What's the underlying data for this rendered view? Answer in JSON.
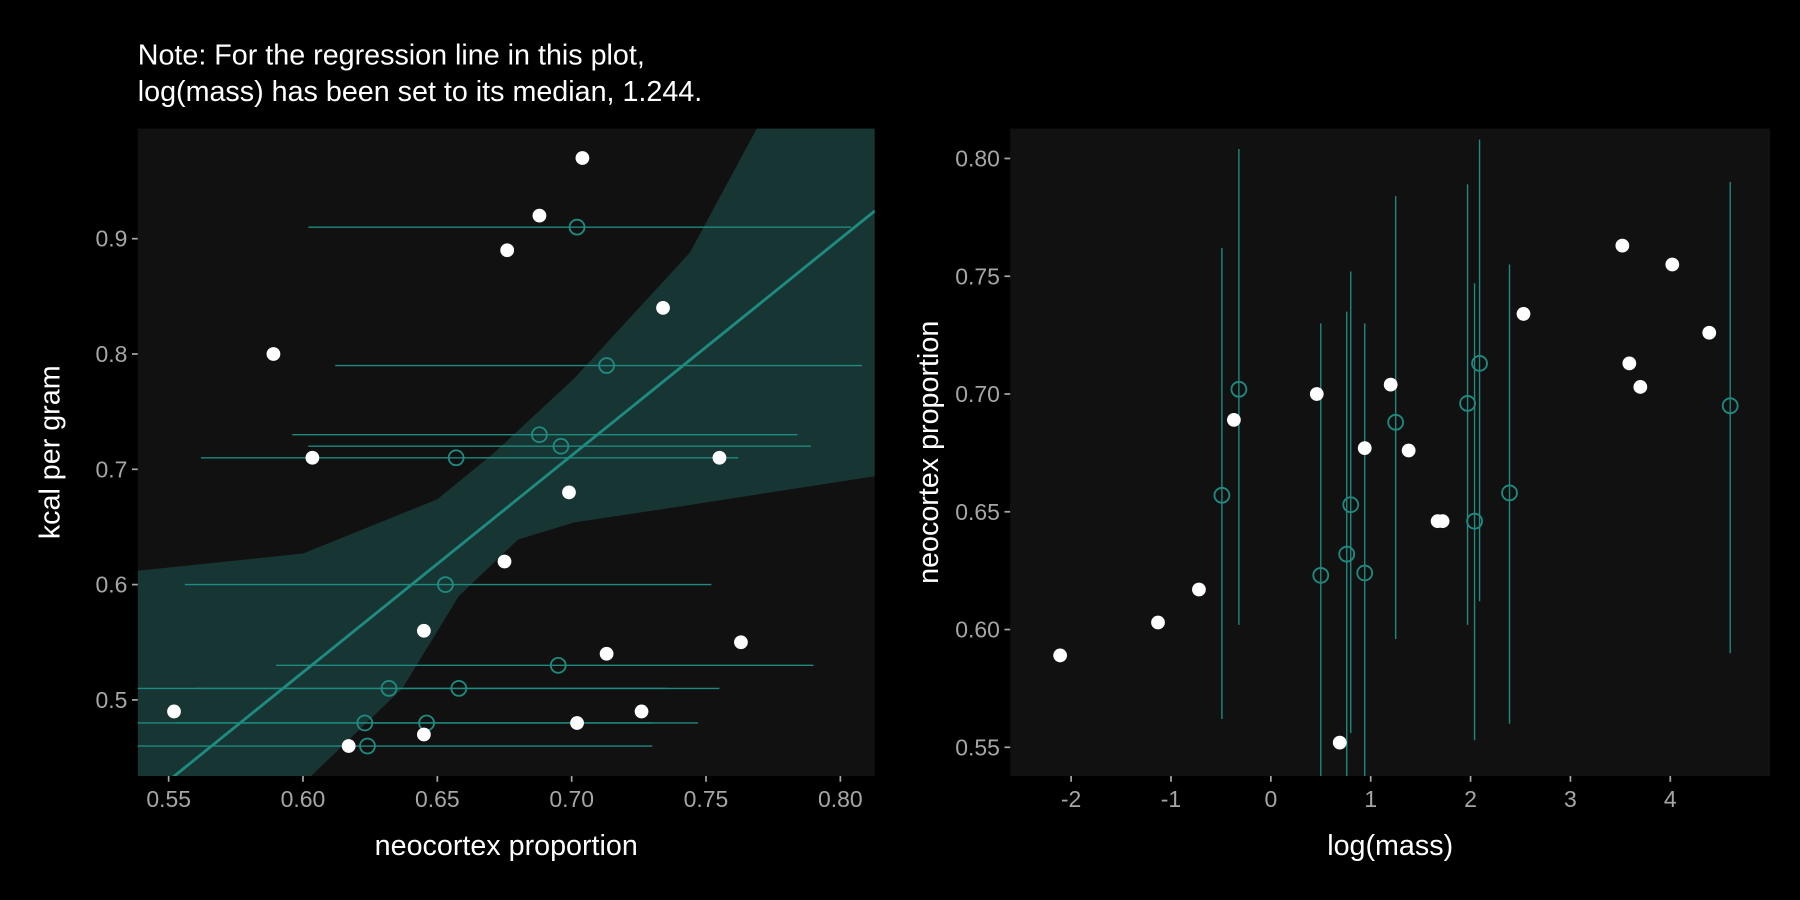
{
  "colors": {
    "background": "#000000",
    "panel": "#111111",
    "accent": "#1f8a80",
    "ribbon": "#173532",
    "observed": "#ffffff",
    "tick": "#a6a6a6"
  },
  "chart_data": [
    {
      "type": "scatter",
      "title": "Note: For the regression line in this plot,",
      "subtitle": "log(mass) has been set to its median, 1.244.",
      "xlabel": "neocortex proportion",
      "ylabel": "kcal per gram",
      "xlim": [
        0.5385,
        0.8128
      ],
      "ylim": [
        0.434,
        0.9955
      ],
      "xticks": [
        0.55,
        0.6,
        0.65,
        0.7,
        0.75,
        0.8
      ],
      "xtick_labels": [
        "0.55",
        "0.60",
        "0.65",
        "0.70",
        "0.75",
        "0.80"
      ],
      "yticks": [
        0.5,
        0.6,
        0.7,
        0.8,
        0.9
      ],
      "ytick_labels": [
        "0.5",
        "0.6",
        "0.7",
        "0.8",
        "0.9"
      ],
      "grid": false,
      "observed": [
        [
          0.552,
          0.49
        ],
        [
          0.589,
          0.8
        ],
        [
          0.6035,
          0.71
        ],
        [
          0.617,
          0.46
        ],
        [
          0.645,
          0.56
        ],
        [
          0.645,
          0.47
        ],
        [
          0.675,
          0.62
        ],
        [
          0.676,
          0.89
        ],
        [
          0.688,
          0.92
        ],
        [
          0.699,
          0.68
        ],
        [
          0.702,
          0.48
        ],
        [
          0.704,
          0.97
        ],
        [
          0.713,
          0.54
        ],
        [
          0.726,
          0.49
        ],
        [
          0.734,
          0.84
        ],
        [
          0.755,
          0.71
        ],
        [
          0.763,
          0.55
        ]
      ],
      "regression_line": {
        "intercept_at_0.6": 0.524,
        "slope": 1.88
      },
      "ribbon_upper": [
        [
          0.5385,
          0.612
        ],
        [
          0.6,
          0.627
        ],
        [
          0.65,
          0.674
        ],
        [
          0.671,
          0.714
        ],
        [
          0.701,
          0.779
        ],
        [
          0.744,
          0.888
        ],
        [
          0.769,
          0.996
        ]
      ],
      "ribbon_lower": [
        [
          0.5385,
          0.33
        ],
        [
          0.603,
          0.434
        ],
        [
          0.637,
          0.51
        ],
        [
          0.658,
          0.59
        ],
        [
          0.68,
          0.639
        ],
        [
          0.701,
          0.654
        ],
        [
          0.744,
          0.669
        ],
        [
          0.8128,
          0.694
        ]
      ]
    },
    {
      "type": "scatter",
      "xlabel": "log(mass)",
      "ylabel": "neocortex proportion",
      "xlim": [
        -2.61,
        5.0
      ],
      "ylim": [
        0.5378,
        0.8127
      ],
      "xticks": [
        -2,
        -1,
        0,
        1,
        2,
        3,
        4
      ],
      "xtick_labels": [
        "-2",
        "-1",
        "0",
        "1",
        "2",
        "3",
        "4"
      ],
      "yticks": [
        0.55,
        0.6,
        0.65,
        0.7,
        0.75,
        0.8
      ],
      "ytick_labels": [
        "0.55",
        "0.60",
        "0.65",
        "0.70",
        "0.75",
        "0.80"
      ],
      "grid": false,
      "observed": [
        [
          -2.11,
          0.589
        ],
        [
          -1.13,
          0.603
        ],
        [
          -0.72,
          0.617
        ],
        [
          -0.37,
          0.689
        ],
        [
          0.46,
          0.7
        ],
        [
          0.69,
          0.552
        ],
        [
          0.94,
          0.677
        ],
        [
          1.2,
          0.704
        ],
        [
          1.38,
          0.676
        ],
        [
          1.67,
          0.646
        ],
        [
          1.72,
          0.646
        ],
        [
          2.53,
          0.734
        ],
        [
          3.52,
          0.763
        ],
        [
          3.59,
          0.713
        ],
        [
          3.7,
          0.703
        ],
        [
          4.02,
          0.755
        ],
        [
          4.39,
          0.726
        ]
      ]
    }
  ],
  "imputed": [
    {
      "kcal": 0.51,
      "neocortex": 0.632,
      "lo": 0.52,
      "hi": 0.735,
      "logmass": 0.76
    },
    {
      "kcal": 0.46,
      "neocortex": 0.624,
      "lo": 0.52,
      "hi": 0.73,
      "logmass": 0.94
    },
    {
      "kcal": 0.48,
      "neocortex": 0.623,
      "lo": 0.52,
      "hi": 0.73,
      "logmass": 0.5
    },
    {
      "kcal": 0.6,
      "neocortex": 0.653,
      "lo": 0.556,
      "hi": 0.752,
      "logmass": 0.8
    },
    {
      "kcal": 0.91,
      "neocortex": 0.702,
      "lo": 0.602,
      "hi": 0.804,
      "logmass": -0.32
    },
    {
      "kcal": 0.71,
      "neocortex": 0.657,
      "lo": 0.562,
      "hi": 0.762,
      "logmass": -0.49
    },
    {
      "kcal": 0.73,
      "neocortex": 0.688,
      "lo": 0.596,
      "hi": 0.784,
      "logmass": 1.25
    },
    {
      "kcal": 0.72,
      "neocortex": 0.696,
      "lo": 0.602,
      "hi": 0.789,
      "logmass": 1.97
    },
    {
      "kcal": 0.79,
      "neocortex": 0.713,
      "lo": 0.612,
      "hi": 0.808,
      "logmass": 2.09
    },
    {
      "kcal": 0.48,
      "neocortex": 0.646,
      "lo": 0.553,
      "hi": 0.747,
      "logmass": 2.04
    },
    {
      "kcal": 0.51,
      "neocortex": 0.658,
      "lo": 0.56,
      "hi": 0.755,
      "logmass": 2.39
    },
    {
      "kcal": 0.53,
      "neocortex": 0.695,
      "lo": 0.59,
      "hi": 0.79,
      "logmass": 4.6
    }
  ]
}
